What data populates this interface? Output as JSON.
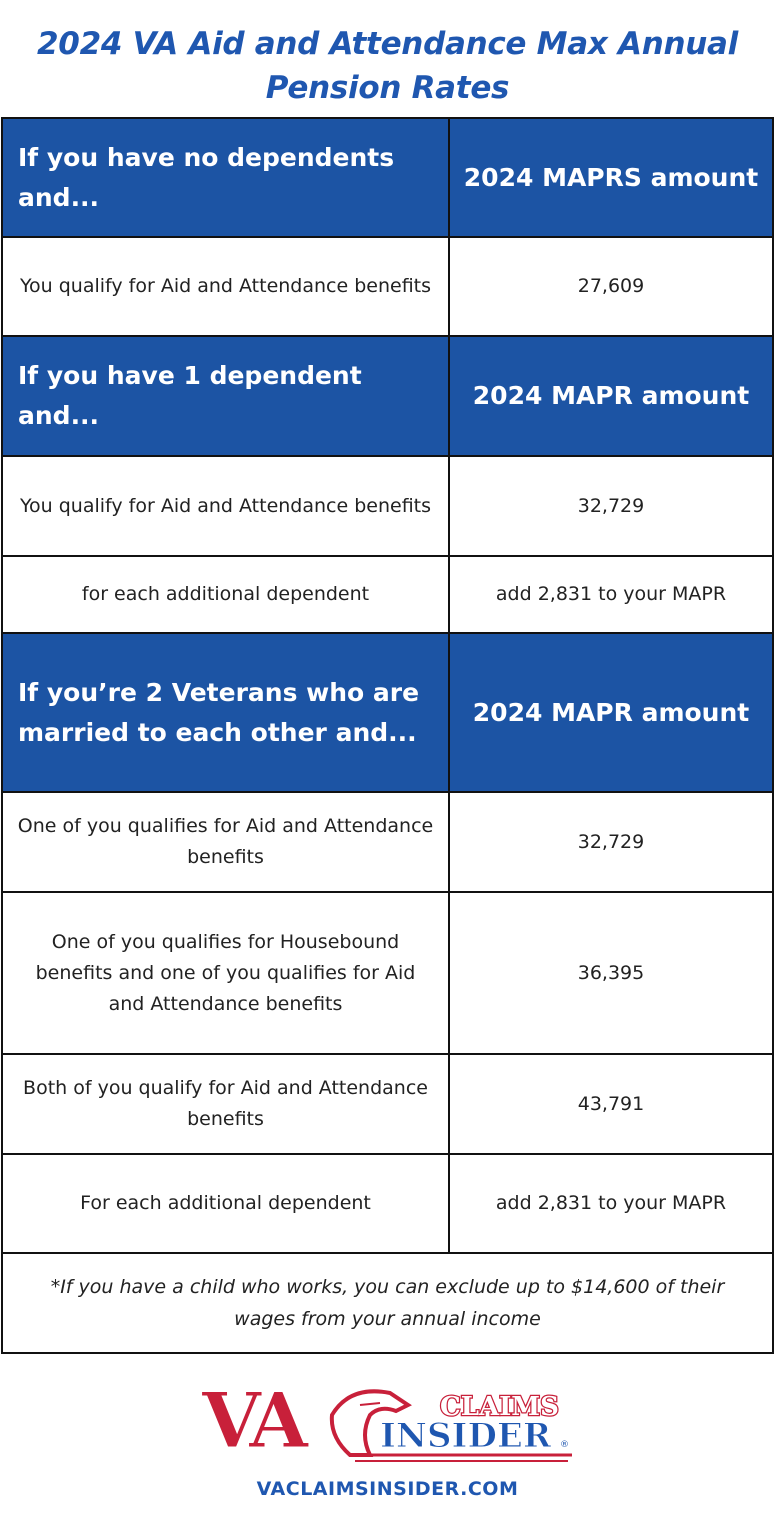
{
  "title": "2024 VA Aid and Attendance Max Annual Pension Rates",
  "sections": [
    {
      "condition": "If you have no dependents and...",
      "amount_header": "2024 MAPRS amount",
      "rows": [
        {
          "label": "You qualify for Aid and Attendance benefits",
          "value": "27,609"
        }
      ]
    },
    {
      "condition": "If you have 1 dependent and...",
      "amount_header": "2024 MAPR amount",
      "rows": [
        {
          "label": "You qualify for Aid and Attendance benefits",
          "value": "32,729"
        },
        {
          "label": "for each additional dependent",
          "value": "add 2,831 to your MAPR"
        }
      ]
    },
    {
      "condition": "If you’re 2 Veterans who are married to each other and...",
      "amount_header": "2024 MAPR amount",
      "rows": [
        {
          "label": "One of you qualifies for Aid and Attendance benefits",
          "value": "32,729"
        },
        {
          "label": "One of you qualifies for Housebound benefits and one of you qualifies for Aid and Attendance benefits",
          "value": "36,395"
        },
        {
          "label": "Both of you qualify for Aid and Attendance benefits",
          "value": "43,791"
        },
        {
          "label": "For each additional dependent",
          "value": "add 2,831 to your MAPR"
        }
      ]
    }
  ],
  "footnote": "*If you have a child who works, you can exclude up to $14,600 of their wages from your annual income",
  "logo": {
    "text_va": "VA",
    "text_claims": "CLAIMS",
    "text_insider": "INSIDER",
    "registered": "®",
    "colors": {
      "red": "#c8203a",
      "blue": "#1f57b0"
    }
  },
  "website": "VACLAIMSINSIDER.COM",
  "colors": {
    "header_bg": "#1c54a4",
    "title": "#1f57b0"
  }
}
